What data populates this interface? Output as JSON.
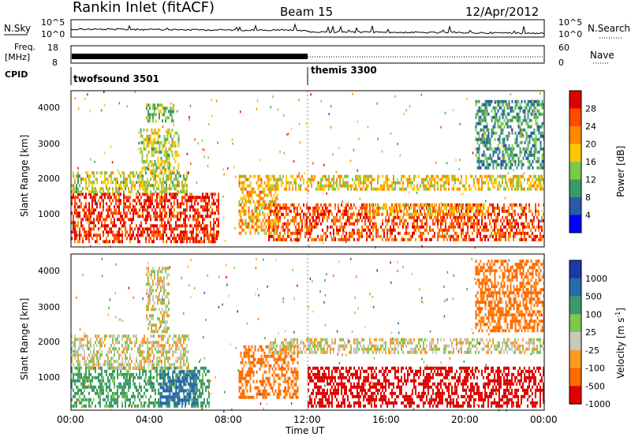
{
  "header": {
    "station": "Rankin Inlet (fitACF)",
    "beam": "Beam 15",
    "date": "12/Apr/2012"
  },
  "noise_panel": {
    "left_label": "N.Sky",
    "left_ticks": [
      "10^5",
      "10^0"
    ],
    "right_label": "N.Search",
    "right_ticks": [
      "10^5",
      "10^0"
    ]
  },
  "freq_panel": {
    "left_label_1": "Freq.",
    "left_label_2": "[MHz]",
    "left_ticks": [
      "18",
      "8"
    ],
    "right_label": "Nave",
    "right_ticks": [
      "60",
      "0"
    ]
  },
  "cpid": {
    "label": "CPID",
    "modes": [
      {
        "name": "twofsound 3501",
        "start_hour": 0
      },
      {
        "name": "themis 3300",
        "start_hour": 12.0
      }
    ]
  },
  "x_axis": {
    "label": "Time UT",
    "ticks": [
      "00:00",
      "04:00",
      "08:00",
      "12:00",
      "16:00",
      "20:00",
      "00:00"
    ],
    "range_hours": [
      0,
      24
    ]
  },
  "y_axis": {
    "label": "Slant Range [km]",
    "ticks": [
      "1000",
      "2000",
      "3000",
      "4000"
    ],
    "range_km": [
      180,
      4560
    ]
  },
  "power_colorbar": {
    "label": "Power [dB]",
    "ticks": [
      "28",
      "24",
      "20",
      "16",
      "12",
      "8",
      "4"
    ],
    "colors": [
      "#e00000",
      "#ff4a00",
      "#ff8a00",
      "#ffc800",
      "#7ec850",
      "#3a9a68",
      "#2a5aa8",
      "#0000ff"
    ]
  },
  "velocity_colorbar": {
    "label": "Velocity [m s",
    "label_sup": "-1",
    "label_end": "]",
    "ticks": [
      "1000",
      "500",
      "100",
      "25",
      "-25",
      "-100",
      "-500",
      "-1000"
    ],
    "colors": [
      "#1a3aa8",
      "#2a6aa8",
      "#3a9a68",
      "#7ec850",
      "#c8c8c0",
      "#ff9a20",
      "#ff6a00",
      "#e00000"
    ]
  },
  "chart_data": [
    {
      "type": "heatmap",
      "title": "Power [dB]",
      "xlabel": "Time UT",
      "ylabel": "Slant Range [km]",
      "xlim": [
        0,
        24
      ],
      "ylim": [
        180,
        4560
      ],
      "regions": [
        {
          "t0": 0.0,
          "t1": 7.5,
          "r0": 300,
          "r1": 1700,
          "value": 26
        },
        {
          "t0": 0.0,
          "t1": 6.0,
          "r0": 1700,
          "r1": 2300,
          "value": 14
        },
        {
          "t0": 3.5,
          "t1": 5.5,
          "r0": 2300,
          "r1": 3500,
          "value": 14
        },
        {
          "t0": 3.8,
          "t1": 5.2,
          "r0": 3700,
          "r1": 4200,
          "value": 12
        },
        {
          "t0": 8.5,
          "t1": 10.5,
          "r0": 600,
          "r1": 2200,
          "value": 18
        },
        {
          "t0": 10.0,
          "t1": 24.0,
          "r0": 400,
          "r1": 1400,
          "value": 24
        },
        {
          "t0": 10.0,
          "t1": 24.0,
          "r0": 1800,
          "r1": 2200,
          "value": 16
        },
        {
          "t0": 15.0,
          "t1": 21.0,
          "r0": 1100,
          "r1": 1400,
          "value": 18
        },
        {
          "t0": 20.5,
          "t1": 24.0,
          "r0": 2400,
          "r1": 4300,
          "value": 8
        }
      ]
    },
    {
      "type": "heatmap",
      "title": "Velocity [m s-1]",
      "xlabel": "Time UT",
      "ylabel": "Slant Range [km]",
      "xlim": [
        0,
        24
      ],
      "ylim": [
        180,
        4560
      ],
      "regions": [
        {
          "t0": 0.0,
          "t1": 7.0,
          "r0": 300,
          "r1": 1400,
          "value": 100
        },
        {
          "t0": 4.5,
          "t1": 6.5,
          "r0": 400,
          "r1": 1300,
          "value": 500
        },
        {
          "t0": 0.0,
          "t1": 6.0,
          "r0": 1400,
          "r1": 2300,
          "value": 0
        },
        {
          "t0": 3.8,
          "t1": 5.0,
          "r0": 2400,
          "r1": 4200,
          "value": 0
        },
        {
          "t0": 8.5,
          "t1": 11.5,
          "r0": 500,
          "r1": 2000,
          "value": -100
        },
        {
          "t0": 12.0,
          "t1": 24.0,
          "r0": 300,
          "r1": 1400,
          "value": -500
        },
        {
          "t0": 10.0,
          "t1": 24.0,
          "r0": 1800,
          "r1": 2200,
          "value": 0
        },
        {
          "t0": 20.5,
          "t1": 24.0,
          "r0": 2400,
          "r1": 4400,
          "value": -100
        }
      ]
    }
  ]
}
